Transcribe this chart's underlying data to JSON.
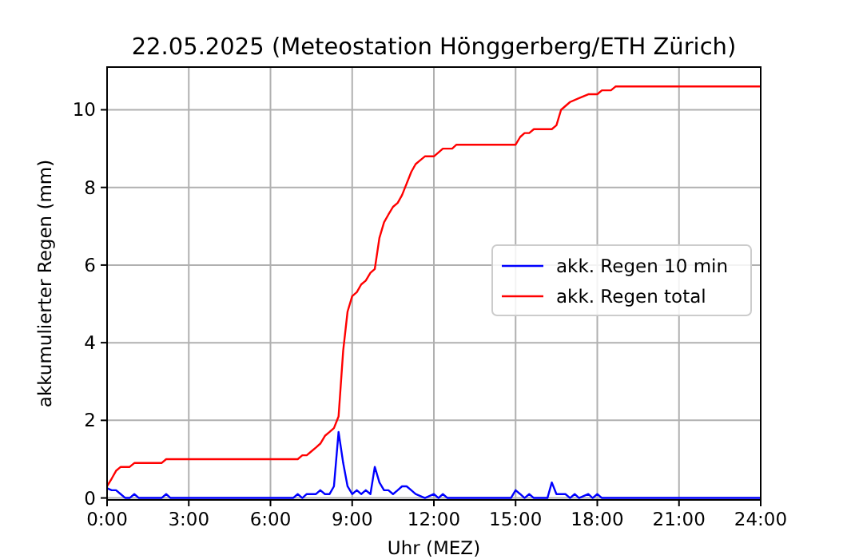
{
  "chart_data": {
    "type": "line",
    "title": "22.05.2025  (Meteostation Hönggerberg/ETH Zürich)",
    "xlabel": "Uhr (MEZ)",
    "ylabel": "akkumulierter Regen (mm)",
    "xlim": [
      0,
      24
    ],
    "xticks": [
      {
        "value": 0,
        "label": "0:00"
      },
      {
        "value": 3,
        "label": "3:00"
      },
      {
        "value": 6,
        "label": "6:00"
      },
      {
        "value": 9,
        "label": "9:00"
      },
      {
        "value": 12,
        "label": "12:00"
      },
      {
        "value": 15,
        "label": "15:00"
      },
      {
        "value": 18,
        "label": "18:00"
      },
      {
        "value": 21,
        "label": "21:00"
      },
      {
        "value": 24,
        "label": "24:00"
      }
    ],
    "ylim": [
      -0.05,
      11.1
    ],
    "yticks": [
      0,
      2,
      4,
      6,
      8,
      10
    ],
    "grid": true,
    "legend": "right",
    "marker": "none",
    "line_style": "solid",
    "series": [
      {
        "name": "akk. Regen 10 min",
        "color": "#0000ff",
        "x": [
          0,
          0.17,
          0.33,
          0.5,
          0.67,
          0.83,
          1,
          1.17,
          2,
          2.17,
          2.33,
          6.83,
          7,
          7.17,
          7.33,
          7.67,
          7.83,
          8,
          8.17,
          8.33,
          8.5,
          8.67,
          8.83,
          9,
          9.17,
          9.33,
          9.5,
          9.67,
          9.83,
          10,
          10.17,
          10.33,
          10.5,
          10.67,
          10.83,
          11,
          11.17,
          11.33,
          11.67,
          12,
          12.17,
          12.33,
          12.5,
          14.83,
          15,
          15.17,
          15.33,
          15.5,
          15.67,
          16.17,
          16.33,
          16.5,
          16.83,
          17,
          17.17,
          17.33,
          17.67,
          17.83,
          18,
          18.17,
          24
        ],
        "values": [
          0.25,
          0.2,
          0.2,
          0.1,
          0,
          0,
          0.1,
          0,
          0,
          0.1,
          0,
          0,
          0.1,
          0,
          0.1,
          0.1,
          0.2,
          0.1,
          0.1,
          0.3,
          1.7,
          0.9,
          0.3,
          0.1,
          0.2,
          0.1,
          0.2,
          0.1,
          0.8,
          0.4,
          0.2,
          0.2,
          0.1,
          0.2,
          0.3,
          0.3,
          0.2,
          0.1,
          0,
          0.1,
          0,
          0.1,
          0,
          0,
          0.2,
          0.1,
          0,
          0.1,
          0,
          0,
          0.4,
          0.1,
          0.1,
          0,
          0.1,
          0,
          0.1,
          0,
          0.1,
          0,
          0
        ]
      },
      {
        "name": "akk. Regen total",
        "color": "#ff0000",
        "x": [
          0,
          0.17,
          0.33,
          0.5,
          0.83,
          1,
          2,
          2.17,
          7,
          7.17,
          7.33,
          7.5,
          7.67,
          7.83,
          8,
          8.17,
          8.33,
          8.5,
          8.67,
          8.83,
          9,
          9.17,
          9.33,
          9.5,
          9.67,
          9.83,
          10,
          10.17,
          10.33,
          10.5,
          10.67,
          10.83,
          11,
          11.17,
          11.33,
          11.5,
          11.67,
          12,
          12.17,
          12.33,
          12.67,
          12.83,
          15,
          15.17,
          15.33,
          15.5,
          15.67,
          16.33,
          16.5,
          16.67,
          17,
          17.33,
          17.67,
          18,
          18.17,
          18.5,
          18.67,
          24
        ],
        "values": [
          0.3,
          0.5,
          0.7,
          0.8,
          0.8,
          0.9,
          0.9,
          1,
          1,
          1.1,
          1.1,
          1.2,
          1.3,
          1.4,
          1.6,
          1.7,
          1.8,
          2.1,
          3.8,
          4.8,
          5.2,
          5.3,
          5.5,
          5.6,
          5.8,
          5.9,
          6.7,
          7.1,
          7.3,
          7.5,
          7.6,
          7.8,
          8.1,
          8.4,
          8.6,
          8.7,
          8.8,
          8.8,
          8.9,
          9,
          9,
          9.1,
          9.1,
          9.3,
          9.4,
          9.4,
          9.5,
          9.5,
          9.6,
          10,
          10.2,
          10.3,
          10.4,
          10.4,
          10.5,
          10.5,
          10.6,
          10.6
        ]
      }
    ]
  }
}
